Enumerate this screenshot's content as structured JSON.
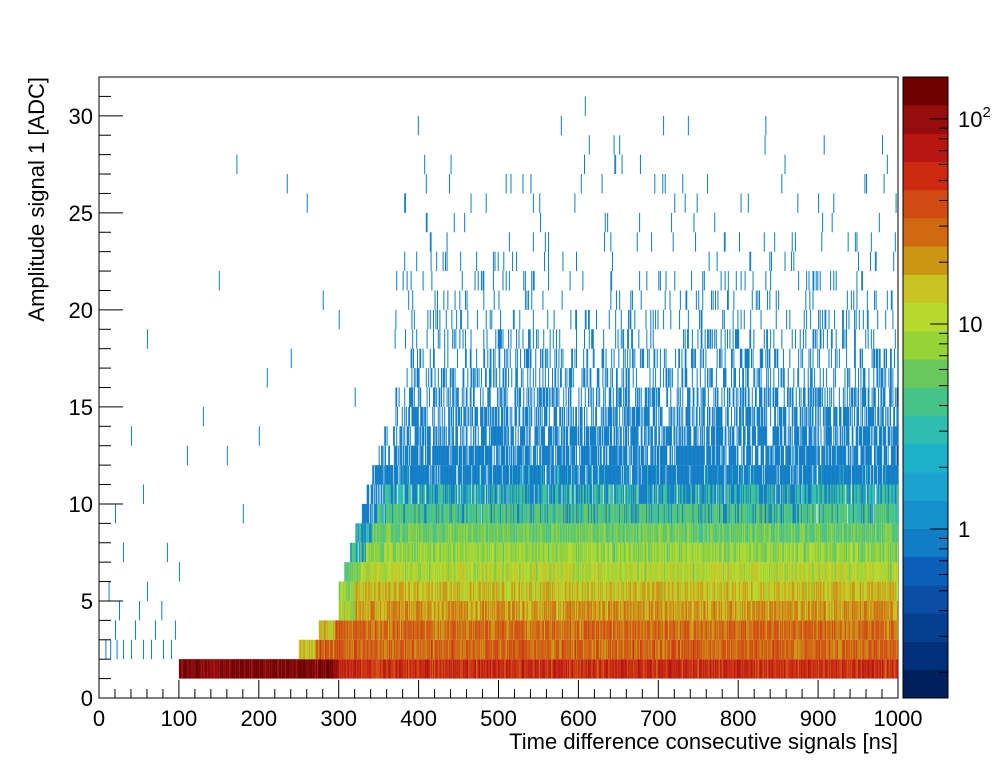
{
  "chart_data": {
    "type": "heatmap",
    "title": "",
    "xlabel": "Time difference consecutive signals [ns]",
    "ylabel": "Amplitude signal 1 [ADC]",
    "xlim": [
      0,
      1000
    ],
    "ylim": [
      0,
      32
    ],
    "x_ticks": [
      "0",
      "100",
      "200",
      "300",
      "400",
      "500",
      "600",
      "700",
      "800",
      "900",
      "1000"
    ],
    "y_ticks": [
      "0",
      "5",
      "10",
      "15",
      "20",
      "25",
      "30"
    ],
    "z_scale": "log",
    "z_range": [
      0.15,
      160
    ],
    "colorbar_labels": [
      {
        "value": 1,
        "base": "1",
        "exp": ""
      },
      {
        "value": 10,
        "base": "10",
        "exp": ""
      },
      {
        "value": 100,
        "base": "10",
        "exp": "2"
      }
    ],
    "bin_width_x": 1,
    "bin_height_y": 1,
    "palette": [
      "#00205d",
      "#01307a",
      "#063f92",
      "#0a4ea6",
      "#0d5eb7",
      "#107dc6",
      "#1590cc",
      "#1aa3cf",
      "#1cb2c9",
      "#2fbdb1",
      "#45c389",
      "#68c85b",
      "#96d336",
      "#b6d92d",
      "#c8c422",
      "#cc9514",
      "#d06a12",
      "#d14a12",
      "#cb2a10",
      "#b71510",
      "#970c0c",
      "#700000"
    ],
    "grid": false,
    "legend": "none"
  }
}
